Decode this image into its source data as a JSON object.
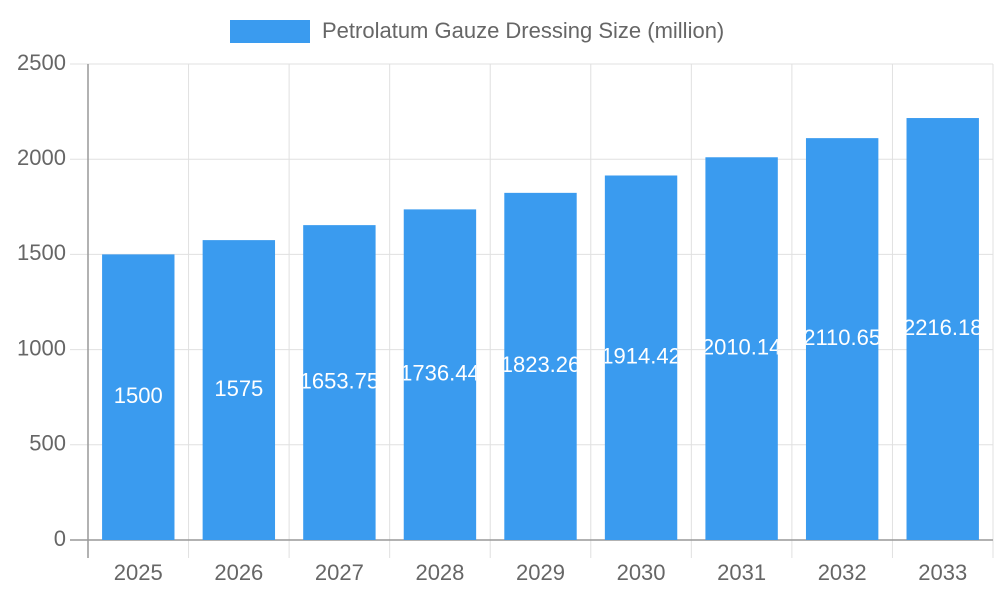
{
  "chart_data": {
    "type": "bar",
    "legend_label": "Petrolatum Gauze Dressing Size (million)",
    "categories": [
      "2025",
      "2026",
      "2027",
      "2028",
      "2029",
      "2030",
      "2031",
      "2032",
      "2033"
    ],
    "values": [
      1500,
      1575,
      1653.75,
      1736.44,
      1823.26,
      1914.42,
      2010.14,
      2110.65,
      2216.18
    ],
    "color": "#3a9bef",
    "ylim": [
      0,
      2500
    ],
    "yticks": [
      0,
      500,
      1000,
      1500,
      2000,
      2500
    ],
    "grid": true,
    "legend": "top"
  }
}
